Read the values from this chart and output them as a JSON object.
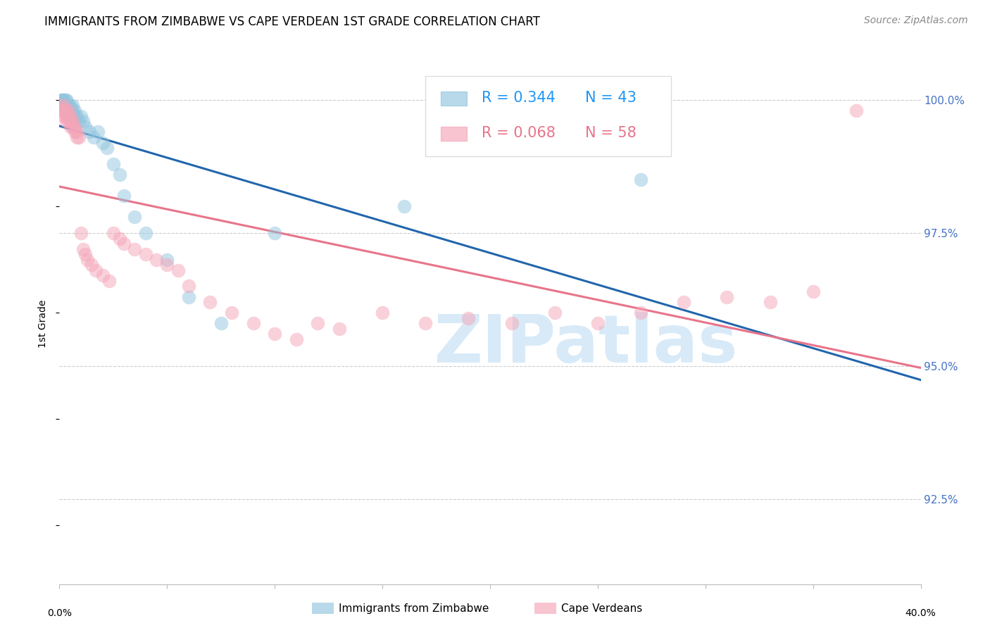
{
  "title": "IMMIGRANTS FROM ZIMBABWE VS CAPE VERDEAN 1ST GRADE CORRELATION CHART",
  "source": "Source: ZipAtlas.com",
  "ylabel": "1st Grade",
  "ytick_labels": [
    "92.5%",
    "95.0%",
    "97.5%",
    "100.0%"
  ],
  "ytick_values": [
    0.925,
    0.95,
    0.975,
    1.0
  ],
  "xlim": [
    0.0,
    0.4
  ],
  "ylim": [
    0.909,
    1.007
  ],
  "blue_color": "#92c5de",
  "pink_color": "#f4a5b8",
  "blue_line_color": "#2166ac",
  "pink_line_color": "#e8748a",
  "blue_text_color": "#2196F3",
  "right_tick_color": "#4472C4",
  "watermark_zip_color": "#c5ddf0",
  "watermark_atlas_color": "#d8eaf8",
  "title_fontsize": 12,
  "axis_label_fontsize": 10,
  "tick_fontsize": 10,
  "legend_fontsize": 15,
  "source_fontsize": 10
}
